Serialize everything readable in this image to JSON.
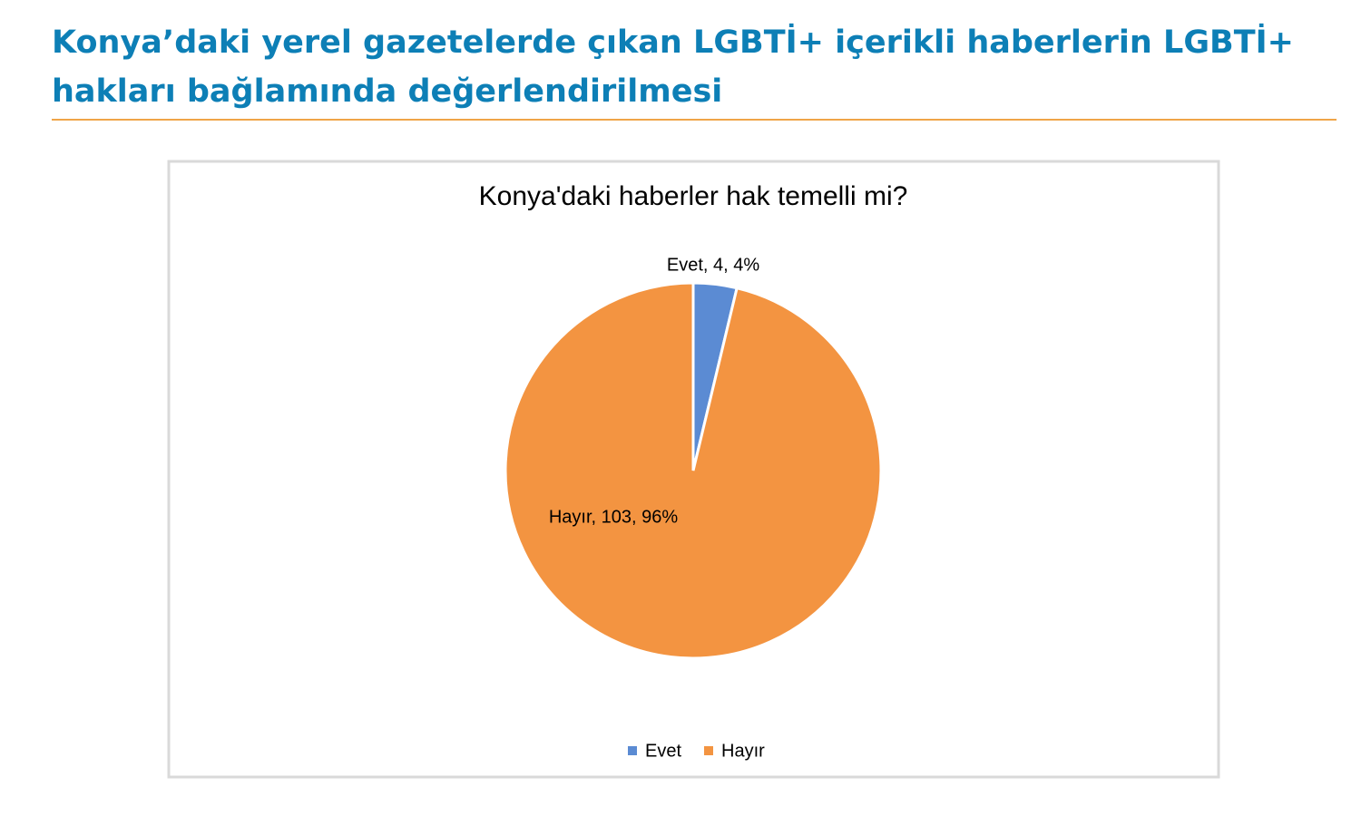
{
  "heading": [
    "Konya’daki yerel gazetelerde çıkan LGBTİ+ içerikli haberlerin LGBTİ+",
    "hakları bağlamında değerlendirilmesi"
  ],
  "chart_data": {
    "type": "pie",
    "title": "Konya'daki haberler hak temelli mi?",
    "categories": [
      "Evet",
      "Hayır"
    ],
    "series": [
      {
        "name": "Konya'daki haberler hak temelli mi?",
        "values": [
          4,
          103
        ],
        "value_labels": [
          "Evet, 4, 4%",
          "Hayır, 103, 96%"
        ]
      }
    ],
    "colors": [
      "#5b8bd3",
      "#f39441"
    ],
    "legend": "bottom"
  }
}
